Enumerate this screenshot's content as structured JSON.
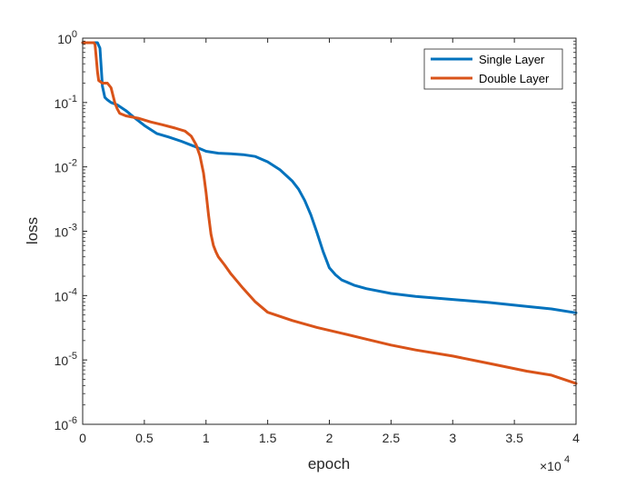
{
  "chart_data": {
    "type": "line",
    "xlabel": "epoch",
    "ylabel": "loss",
    "x_multiplier_label": "×10",
    "x_multiplier_exp": "4",
    "xlim": [
      0,
      40000
    ],
    "ylim": [
      1e-06,
      1
    ],
    "yscale": "log",
    "xticks": [
      0,
      5000,
      10000,
      15000,
      20000,
      25000,
      30000,
      35000,
      40000
    ],
    "xtick_labels": [
      "0",
      "0.5",
      "1",
      "1.5",
      "2",
      "2.5",
      "3",
      "3.5",
      "4"
    ],
    "yticks": [
      {
        "value": 1,
        "base": "10",
        "exp": "0"
      },
      {
        "value": 0.1,
        "base": "10",
        "exp": "-1"
      },
      {
        "value": 0.01,
        "base": "10",
        "exp": "-2"
      },
      {
        "value": 0.001,
        "base": "10",
        "exp": "-3"
      },
      {
        "value": 0.0001,
        "base": "10",
        "exp": "-4"
      },
      {
        "value": 1e-05,
        "base": "10",
        "exp": "-5"
      },
      {
        "value": 1e-06,
        "base": "10",
        "exp": "-6"
      }
    ],
    "grid": false,
    "legend_position": "top-right",
    "series": [
      {
        "name": "Single Layer",
        "color": "#0072BD",
        "x": [
          0,
          800,
          1200,
          1400,
          1500,
          1600,
          1800,
          2000,
          2300,
          2800,
          3500,
          4200,
          5000,
          6000,
          7000,
          8000,
          9000,
          10000,
          11000,
          12000,
          13000,
          14000,
          15000,
          16000,
          17000,
          17500,
          18000,
          18500,
          19000,
          19500,
          20000,
          20500,
          21000,
          22000,
          23000,
          25000,
          27000,
          30000,
          33000,
          36000,
          38000,
          40000
        ],
        "y": [
          0.85,
          0.85,
          0.85,
          0.7,
          0.35,
          0.18,
          0.12,
          0.11,
          0.1,
          0.092,
          0.075,
          0.058,
          0.044,
          0.033,
          0.029,
          0.025,
          0.021,
          0.0175,
          0.0163,
          0.016,
          0.0155,
          0.0145,
          0.012,
          0.009,
          0.006,
          0.0045,
          0.003,
          0.0018,
          0.00095,
          0.00048,
          0.00027,
          0.00021,
          0.000175,
          0.000145,
          0.000128,
          0.000108,
          9.7e-05,
          8.7e-05,
          7.8e-05,
          6.8e-05,
          6.2e-05,
          5.4e-05
        ]
      },
      {
        "name": "Double Layer",
        "color": "#D95319",
        "x": [
          0,
          900,
          1000,
          1100,
          1200,
          1300,
          1600,
          2000,
          2300,
          2600,
          2800,
          3000,
          3500,
          4500,
          5500,
          6500,
          7500,
          8300,
          8800,
          9200,
          9500,
          9800,
          10000,
          10200,
          10400,
          10600,
          10800,
          11000,
          11500,
          12000,
          13000,
          14000,
          15000,
          17000,
          19000,
          21000,
          23000,
          25000,
          27000,
          30000,
          33000,
          36000,
          38000,
          40000
        ],
        "y": [
          0.85,
          0.85,
          0.8,
          0.5,
          0.3,
          0.22,
          0.2,
          0.2,
          0.17,
          0.1,
          0.08,
          0.068,
          0.062,
          0.057,
          0.05,
          0.045,
          0.04,
          0.036,
          0.03,
          0.022,
          0.015,
          0.008,
          0.004,
          0.0018,
          0.0009,
          0.0006,
          0.00048,
          0.0004,
          0.0003,
          0.00022,
          0.00013,
          8e-05,
          5.5e-05,
          4.1e-05,
          3.2e-05,
          2.6e-05,
          2.1e-05,
          1.7e-05,
          1.43e-05,
          1.15e-05,
          8.8e-06,
          6.7e-06,
          5.8e-06,
          4.3e-06
        ]
      }
    ]
  }
}
